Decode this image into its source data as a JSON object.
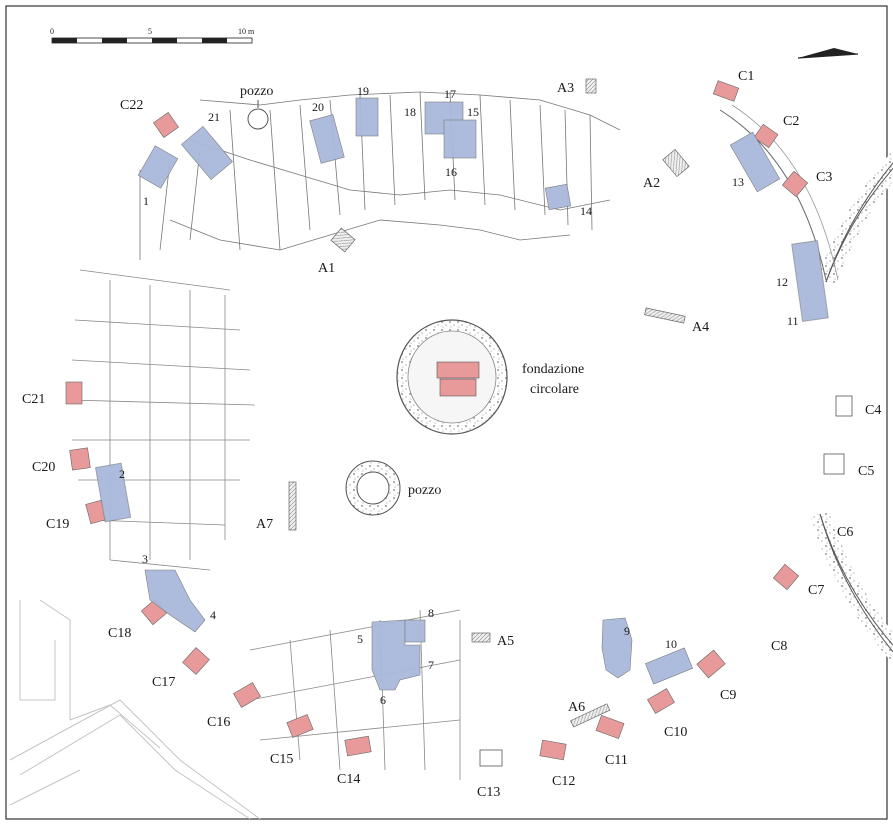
{
  "scale": {
    "ticks": [
      "0",
      "5",
      "10 m"
    ]
  },
  "colors": {
    "red": "#e89a9a",
    "blue": "#a9b9dc",
    "grey": "#cfcfcf",
    "line": "#555555"
  },
  "labels": {
    "C1": "C1",
    "C2": "C2",
    "C3": "C3",
    "C4": "C4",
    "C5": "C5",
    "C6": "C6",
    "C7": "C7",
    "C8": "C8",
    "C9": "C9",
    "C10": "C10",
    "C11": "C11",
    "C12": "C12",
    "C13": "C13",
    "C14": "C14",
    "C15": "C15",
    "C16": "C16",
    "C17": "C17",
    "C18": "C18",
    "C19": "C19",
    "C20": "C20",
    "C21": "C21",
    "C22": "C22",
    "A1": "A1",
    "A2": "A2",
    "A3": "A3",
    "A4": "A4",
    "A5": "A5",
    "A6": "A6",
    "A7": "A7",
    "n1": "1",
    "n2": "2",
    "n3": "3",
    "n4": "4",
    "n5": "5",
    "n6": "6",
    "n7": "7",
    "n8": "8",
    "n9": "9",
    "n10": "10",
    "n11": "11",
    "n12": "12",
    "n13": "13",
    "n14": "14",
    "n15": "15",
    "n16": "16",
    "n17": "17",
    "n18": "18",
    "n19": "19",
    "n20": "20",
    "n21": "21",
    "pozzo_top": "pozzo",
    "pozzo_center": "pozzo",
    "fondazione_1": "fondazione",
    "fondazione_2": "circolare"
  }
}
